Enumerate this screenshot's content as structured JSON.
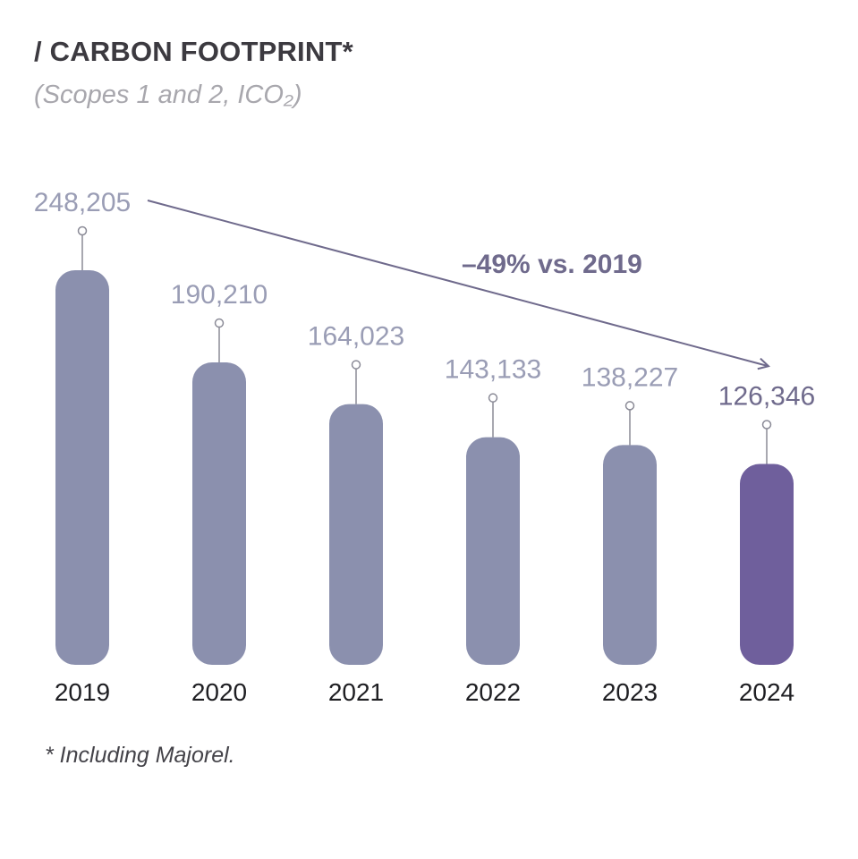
{
  "title": "/ CARBON FOOTPRINT*",
  "subtitle": "(Scopes 1 and 2, ICO₂)",
  "footnote": "* Including Majorel.",
  "chart_data": {
    "type": "bar",
    "title": "/ CARBON FOOTPRINT*",
    "subtitle": "(Scopes 1 and 2, ICO₂)",
    "categories": [
      "2019",
      "2020",
      "2021",
      "2022",
      "2023",
      "2024"
    ],
    "values": [
      248205,
      190210,
      164023,
      143133,
      138227,
      126346
    ],
    "value_labels": [
      "248,205",
      "190,210",
      "164,023",
      "143,133",
      "138,227",
      "126,346"
    ],
    "annotation": "–49% vs. 2019",
    "xlabel": "",
    "ylabel": "",
    "grid": false,
    "legend": "none",
    "colors": {
      "bar": "#8b90ae",
      "bar_highlight": "#6f5f9c",
      "value_label": "#9a9db5",
      "value_label_highlight": "#6f6a8c",
      "trend_line": "#6f6a8c"
    }
  }
}
